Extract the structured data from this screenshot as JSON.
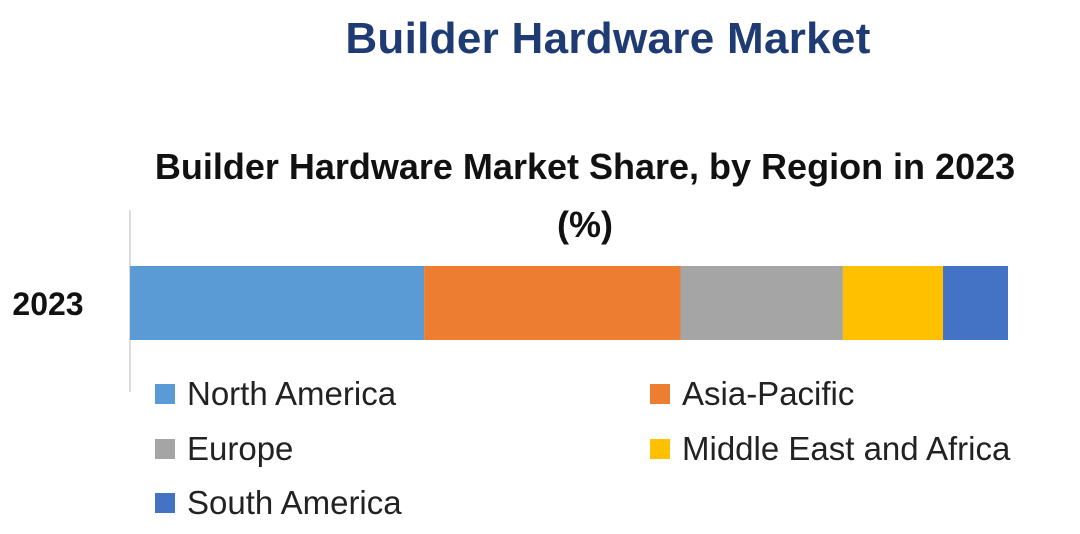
{
  "page": {
    "title": "Builder Hardware Market"
  },
  "chart_data": {
    "type": "bar",
    "orientation": "horizontal",
    "stacked": true,
    "title": "Builder Hardware Market Share, by Region in 2023 (%)",
    "categories": [
      "2023"
    ],
    "xlim": [
      0,
      100
    ],
    "grid": false,
    "legend_position": "bottom",
    "series": [
      {
        "name": "North America",
        "values": [
          33.5
        ],
        "color": "#5b9bd5"
      },
      {
        "name": "Asia-Pacific",
        "values": [
          29.2
        ],
        "color": "#ed7d31"
      },
      {
        "name": "Europe",
        "values": [
          18.5
        ],
        "color": "#a5a5a5"
      },
      {
        "name": "Middle East and Africa",
        "values": [
          11.4
        ],
        "color": "#ffc000"
      },
      {
        "name": "South America",
        "values": [
          7.4
        ],
        "color": "#4472c4"
      }
    ]
  }
}
